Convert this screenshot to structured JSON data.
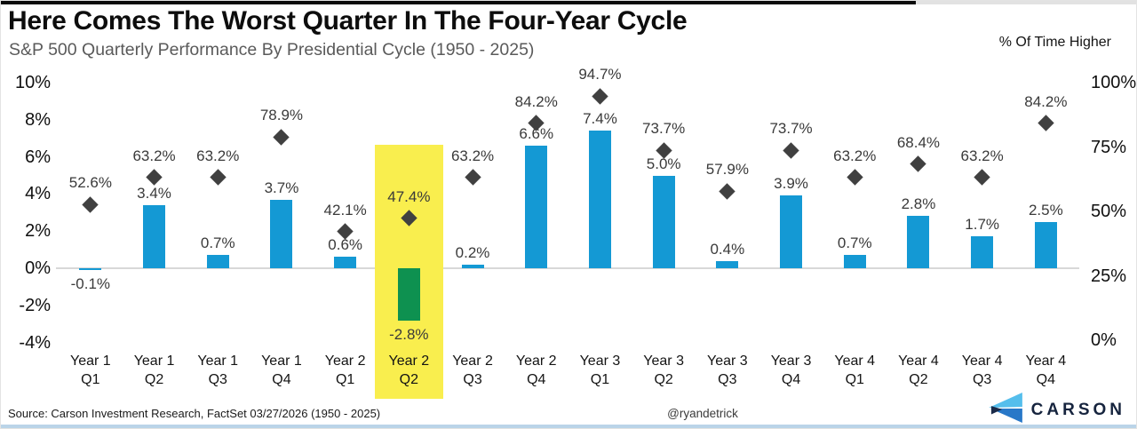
{
  "header": {
    "title": "Here Comes The Worst Quarter In The Four-Year Cycle",
    "subtitle": "S&P 500 Quarterly Performance By Presidential Cycle (1950 - 2025)",
    "right_axis_title": "% Of Time Higher"
  },
  "chart_data": {
    "type": "bar",
    "categories": [
      [
        "Year 1",
        "Q1"
      ],
      [
        "Year 1",
        "Q2"
      ],
      [
        "Year 1",
        "Q3"
      ],
      [
        "Year 1",
        "Q4"
      ],
      [
        "Year 2",
        "Q1"
      ],
      [
        "Year 2",
        "Q2"
      ],
      [
        "Year 2",
        "Q3"
      ],
      [
        "Year 2",
        "Q4"
      ],
      [
        "Year 3",
        "Q1"
      ],
      [
        "Year 3",
        "Q2"
      ],
      [
        "Year 3",
        "Q3"
      ],
      [
        "Year 3",
        "Q4"
      ],
      [
        "Year 4",
        "Q1"
      ],
      [
        "Year 4",
        "Q2"
      ],
      [
        "Year 4",
        "Q3"
      ],
      [
        "Year 4",
        "Q4"
      ]
    ],
    "series": [
      {
        "name": "S&P 500 average quarterly return",
        "type": "bar",
        "unit": "%",
        "values": [
          -0.1,
          3.4,
          0.7,
          3.7,
          0.6,
          -2.8,
          0.2,
          6.6,
          7.4,
          5.0,
          0.4,
          3.9,
          0.7,
          2.8,
          1.7,
          2.5
        ]
      },
      {
        "name": "% Of Time Higher",
        "type": "scatter",
        "marker": "diamond",
        "unit": "%",
        "values": [
          52.6,
          63.2,
          63.2,
          78.9,
          42.1,
          47.4,
          63.2,
          84.2,
          94.7,
          73.7,
          57.9,
          73.7,
          63.2,
          68.4,
          63.2,
          84.2
        ]
      }
    ],
    "highlight_index": 5,
    "left_axis": {
      "min": -4,
      "max": 10,
      "step": 2,
      "tick_suffix": "%"
    },
    "right_axis": {
      "min": 0,
      "max": 100,
      "step": 25,
      "tick_suffix": "%"
    },
    "legend_position": "none",
    "grid": "zero-line-only",
    "colors": {
      "bar": "#1499d4",
      "bar_highlight": "#0e9150",
      "highlight_band": "#f9ee4e",
      "marker": "#404040",
      "zero_line": "#d8d8d8"
    }
  },
  "footer": {
    "source": "Source: Carson Investment Research, FactSet 03/27/2026 (1950 - 2025)",
    "handle": "@ryandetrick",
    "brand": "CARSON"
  }
}
